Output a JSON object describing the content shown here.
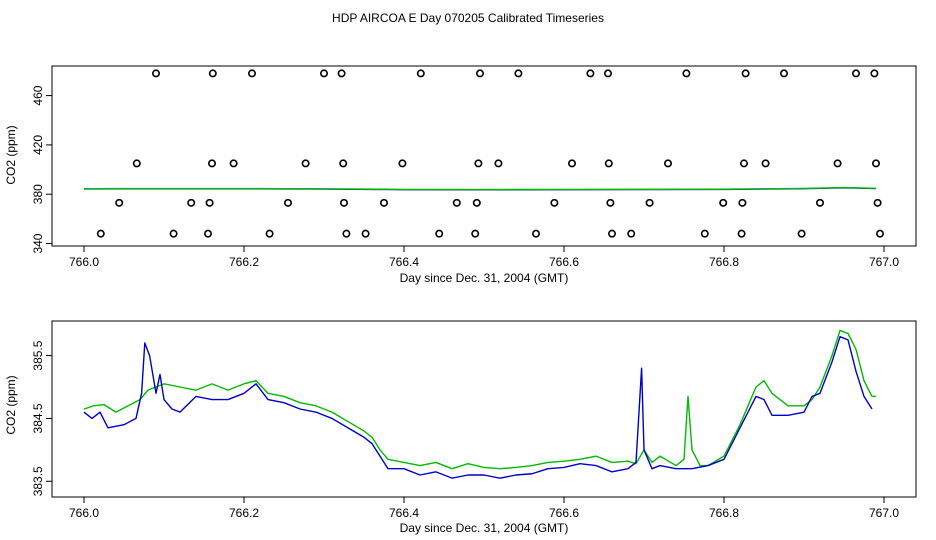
{
  "title": "HDP AIRCOA E  Day 070205  Calibrated Timeseries",
  "colors": {
    "blue": "#0000cc",
    "green": "#00bb00",
    "black": "#000000"
  },
  "chart_data": [
    {
      "type": "scatter",
      "xlabel": "Day since Dec. 31, 2004 (GMT)",
      "ylabel": "CO2 (ppm)",
      "xlim": [
        765.96,
        767.04
      ],
      "ylim": [
        338,
        484
      ],
      "x_ticks": [
        766.0,
        766.2,
        766.4,
        766.6,
        766.8,
        767.0
      ],
      "x_tick_labels": [
        "766.0",
        "766.2",
        "766.4",
        "766.6",
        "766.8",
        "767.0"
      ],
      "y_ticks": [
        340,
        380,
        420,
        460
      ],
      "y_tick_labels": [
        "340",
        "380",
        "420",
        "460"
      ],
      "grid": false,
      "series": [
        {
          "marker": "circle",
          "color": "#000000",
          "points": [
            [
              766.021,
              348
            ],
            [
              766.044,
              373
            ],
            [
              766.066,
              405
            ],
            [
              766.09,
              478
            ],
            [
              766.112,
              348
            ],
            [
              766.134,
              373
            ],
            [
              766.155,
              348
            ],
            [
              766.157,
              373
            ],
            [
              766.16,
              405
            ],
            [
              766.161,
              478
            ],
            [
              766.187,
              405
            ],
            [
              766.21,
              478
            ],
            [
              766.232,
              348
            ],
            [
              766.255,
              373
            ],
            [
              766.277,
              405
            ],
            [
              766.3,
              478
            ],
            [
              766.322,
              478
            ],
            [
              766.324,
              405
            ],
            [
              766.325,
              373
            ],
            [
              766.328,
              348
            ],
            [
              766.352,
              348
            ],
            [
              766.375,
              373
            ],
            [
              766.398,
              405
            ],
            [
              766.421,
              478
            ],
            [
              766.444,
              348
            ],
            [
              766.466,
              373
            ],
            [
              766.489,
              348
            ],
            [
              766.491,
              373
            ],
            [
              766.493,
              405
            ],
            [
              766.495,
              478
            ],
            [
              766.518,
              405
            ],
            [
              766.543,
              478
            ],
            [
              766.565,
              348
            ],
            [
              766.588,
              373
            ],
            [
              766.61,
              405
            ],
            [
              766.633,
              478
            ],
            [
              766.655,
              478
            ],
            [
              766.656,
              405
            ],
            [
              766.658,
              373
            ],
            [
              766.66,
              348
            ],
            [
              766.684,
              348
            ],
            [
              766.707,
              373
            ],
            [
              766.73,
              405
            ],
            [
              766.753,
              478
            ],
            [
              766.776,
              348
            ],
            [
              766.799,
              373
            ],
            [
              766.822,
              348
            ],
            [
              766.823,
              373
            ],
            [
              766.825,
              405
            ],
            [
              766.827,
              478
            ],
            [
              766.852,
              405
            ],
            [
              766.875,
              478
            ],
            [
              766.897,
              348
            ],
            [
              766.92,
              373
            ],
            [
              766.942,
              405
            ],
            [
              766.965,
              478
            ],
            [
              766.988,
              478
            ],
            [
              766.99,
              405
            ],
            [
              766.992,
              373
            ],
            [
              766.995,
              348
            ]
          ]
        },
        {
          "marker": "line",
          "color": "#0000cc",
          "x": [
            766.0,
            766.1,
            766.2,
            766.3,
            766.4,
            766.5,
            766.6,
            766.7,
            766.8,
            766.9,
            766.95,
            766.99
          ],
          "values": [
            384.3,
            384.4,
            384.4,
            384.2,
            383.7,
            383.6,
            383.7,
            383.8,
            383.9,
            384.5,
            385.2,
            384.6
          ]
        },
        {
          "marker": "line",
          "color": "#00bb00",
          "x": [
            766.0,
            766.1,
            766.2,
            766.3,
            766.4,
            766.5,
            766.6,
            766.7,
            766.8,
            766.9,
            766.95,
            766.99
          ],
          "values": [
            384.5,
            384.6,
            384.6,
            384.4,
            383.9,
            383.8,
            383.9,
            384.0,
            384.1,
            384.7,
            385.4,
            384.8
          ]
        }
      ]
    },
    {
      "type": "line",
      "xlabel": "Day since Dec. 31, 2004 (GMT)",
      "ylabel": "CO2 (ppm)",
      "xlim": [
        765.96,
        767.04
      ],
      "ylim": [
        383.25,
        386.05
      ],
      "x_ticks": [
        766.0,
        766.2,
        766.4,
        766.6,
        766.8,
        767.0
      ],
      "x_tick_labels": [
        "766.0",
        "766.2",
        "766.4",
        "766.6",
        "766.8",
        "767.0"
      ],
      "y_ticks": [
        383.5,
        384.5,
        385.5
      ],
      "y_tick_labels": [
        "383.5",
        "384.5",
        "385.5"
      ],
      "grid": false,
      "series": [
        {
          "color": "#00bb00",
          "x": [
            766.0,
            766.012,
            766.025,
            766.04,
            766.055,
            766.07,
            766.08,
            766.09,
            766.1,
            766.12,
            766.14,
            766.16,
            766.18,
            766.2,
            766.215,
            766.23,
            766.25,
            766.27,
            766.29,
            766.31,
            766.33,
            766.35,
            766.36,
            766.37,
            766.38,
            766.4,
            766.42,
            766.44,
            766.46,
            766.48,
            766.5,
            766.52,
            766.54,
            766.56,
            766.58,
            766.6,
            766.62,
            766.64,
            766.66,
            766.68,
            766.69,
            766.7,
            766.71,
            766.72,
            766.74,
            766.75,
            766.755,
            766.76,
            766.77,
            766.78,
            766.8,
            766.82,
            766.84,
            766.85,
            766.86,
            766.88,
            766.9,
            766.91,
            766.92,
            766.935,
            766.945,
            766.955,
            766.965,
            766.975,
            766.985,
            766.99
          ],
          "values": [
            384.65,
            384.7,
            384.72,
            384.6,
            384.7,
            384.8,
            384.95,
            385.0,
            385.05,
            385.0,
            384.95,
            385.05,
            384.95,
            385.05,
            385.1,
            384.9,
            384.85,
            384.75,
            384.7,
            384.6,
            384.45,
            384.3,
            384.2,
            384.0,
            383.85,
            383.8,
            383.75,
            383.8,
            383.7,
            383.78,
            383.72,
            383.7,
            383.72,
            383.75,
            383.8,
            383.82,
            383.85,
            383.9,
            383.8,
            383.82,
            383.78,
            384.0,
            383.8,
            383.9,
            383.75,
            383.85,
            384.85,
            384.0,
            383.75,
            383.75,
            383.9,
            384.4,
            385.0,
            385.1,
            384.9,
            384.7,
            384.7,
            384.8,
            385.0,
            385.5,
            385.9,
            385.85,
            385.6,
            385.1,
            384.85,
            384.85
          ]
        },
        {
          "color": "#0000cc",
          "x": [
            766.0,
            766.01,
            766.02,
            766.03,
            766.05,
            766.065,
            766.072,
            766.076,
            766.082,
            766.09,
            766.095,
            766.1,
            766.11,
            766.12,
            766.14,
            766.16,
            766.18,
            766.2,
            766.215,
            766.23,
            766.25,
            766.27,
            766.29,
            766.31,
            766.33,
            766.35,
            766.36,
            766.37,
            766.38,
            766.4,
            766.42,
            766.44,
            766.46,
            766.48,
            766.5,
            766.52,
            766.54,
            766.56,
            766.58,
            766.6,
            766.62,
            766.64,
            766.66,
            766.68,
            766.69,
            766.697,
            766.7,
            766.71,
            766.72,
            766.74,
            766.76,
            766.78,
            766.8,
            766.82,
            766.84,
            766.85,
            766.86,
            766.88,
            766.9,
            766.91,
            766.92,
            766.935,
            766.945,
            766.955,
            766.965,
            766.975,
            766.985
          ],
          "values": [
            384.6,
            384.5,
            384.6,
            384.35,
            384.4,
            384.5,
            384.9,
            385.7,
            385.5,
            384.9,
            385.2,
            384.8,
            384.65,
            384.6,
            384.85,
            384.8,
            384.8,
            384.9,
            385.05,
            384.8,
            384.75,
            384.65,
            384.6,
            384.5,
            384.35,
            384.2,
            384.1,
            383.9,
            383.7,
            383.7,
            383.6,
            383.65,
            383.55,
            383.6,
            383.6,
            383.55,
            383.6,
            383.62,
            383.7,
            383.72,
            383.78,
            383.75,
            383.65,
            383.7,
            383.8,
            385.3,
            384.0,
            383.7,
            383.75,
            383.7,
            383.7,
            383.75,
            383.85,
            384.35,
            384.85,
            384.8,
            384.55,
            384.55,
            384.6,
            384.85,
            384.9,
            385.4,
            385.8,
            385.75,
            385.25,
            384.85,
            384.65
          ]
        }
      ]
    }
  ]
}
